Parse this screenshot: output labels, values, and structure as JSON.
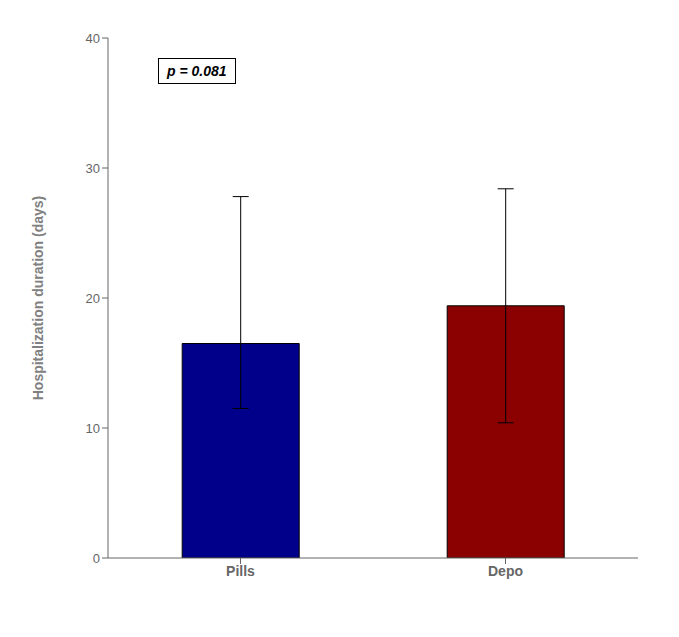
{
  "chart_data": {
    "type": "bar",
    "categories": [
      "Pills",
      "Depo"
    ],
    "values": [
      16.5,
      19.4
    ],
    "error_upper": [
      11.3,
      9.0
    ],
    "error_lower": [
      5.0,
      9.0
    ],
    "colors": [
      "#00008B",
      "#8B0000"
    ],
    "ylabel": "Hospitalization duration (days)",
    "ylim": [
      0,
      40
    ],
    "yticks": [
      0,
      10,
      20,
      30,
      40
    ],
    "annotation": "p = 0.081",
    "grid": false
  }
}
